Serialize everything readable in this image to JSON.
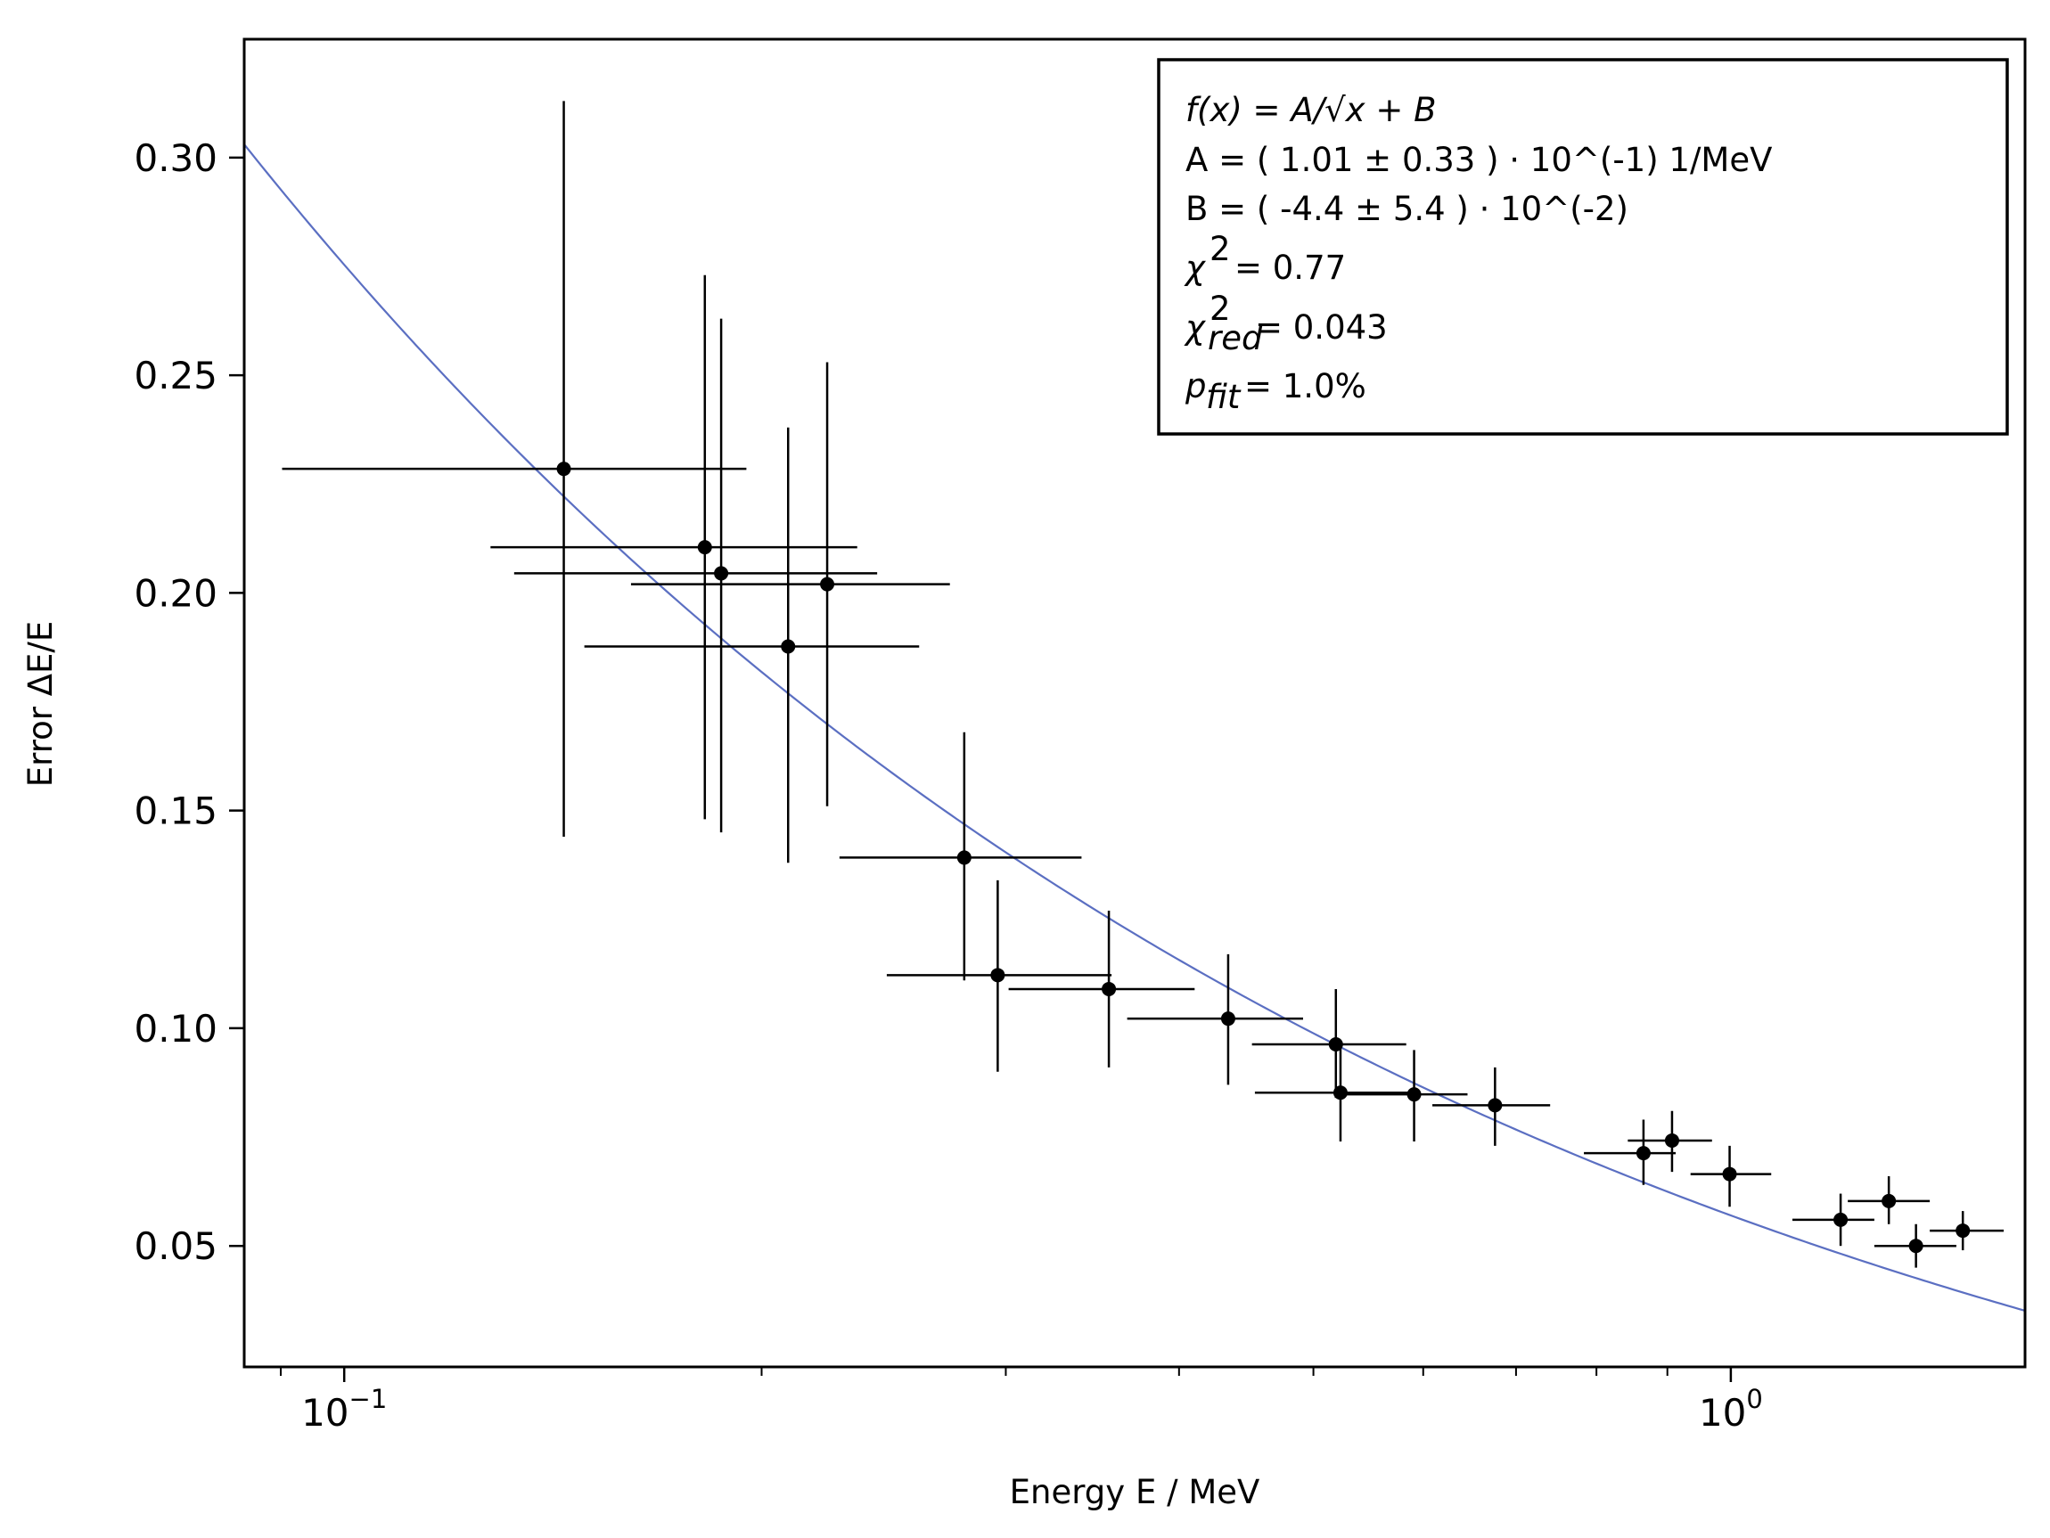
{
  "chart_data": {
    "type": "scatter",
    "xlabel": "Energy E / MeV",
    "ylabel": "Error ΔE/E",
    "xscale": "log",
    "xlim": [
      0.0847,
      1.63
    ],
    "ylim": [
      0.0222,
      0.3272
    ],
    "x_tick_labels": [
      {
        "value": 0.1,
        "base": "10",
        "exp": "−1"
      },
      {
        "value": 1.0,
        "base": "10",
        "exp": "0"
      }
    ],
    "y_ticks": [
      0.05,
      0.1,
      0.15,
      0.2,
      0.25,
      0.3
    ],
    "y_tick_labels": [
      "0.05",
      "0.10",
      "0.15",
      "0.20",
      "0.25",
      "0.30"
    ],
    "grid": false,
    "legend_position": "top-right",
    "series": [
      {
        "kind": "errorbar",
        "color": "#000000",
        "points": [
          {
            "x": 0.144,
            "y": 0.2285,
            "xlow": 0.0902,
            "xhigh": 0.195,
            "ylow": 0.144,
            "yhigh": 0.313
          },
          {
            "x": 0.182,
            "y": 0.2105,
            "xlow": 0.1275,
            "xhigh": 0.2344,
            "ylow": 0.148,
            "yhigh": 0.273
          },
          {
            "x": 0.187,
            "y": 0.2045,
            "xlow": 0.1326,
            "xhigh": 0.2423,
            "ylow": 0.145,
            "yhigh": 0.263
          },
          {
            "x": 0.209,
            "y": 0.1877,
            "xlow": 0.149,
            "xhigh": 0.2598,
            "ylow": 0.138,
            "yhigh": 0.238
          },
          {
            "x": 0.223,
            "y": 0.202,
            "xlow": 0.161,
            "xhigh": 0.2734,
            "ylow": 0.151,
            "yhigh": 0.253
          },
          {
            "x": 0.28,
            "y": 0.1392,
            "xlow": 0.2276,
            "xhigh": 0.3402,
            "ylow": 0.111,
            "yhigh": 0.168
          },
          {
            "x": 0.296,
            "y": 0.1122,
            "xlow": 0.2462,
            "xhigh": 0.3576,
            "ylow": 0.09,
            "yhigh": 0.134
          },
          {
            "x": 0.356,
            "y": 0.109,
            "xlow": 0.3014,
            "xhigh": 0.4105,
            "ylow": 0.091,
            "yhigh": 0.127
          },
          {
            "x": 0.434,
            "y": 0.1022,
            "xlow": 0.367,
            "xhigh": 0.4915,
            "ylow": 0.087,
            "yhigh": 0.117
          },
          {
            "x": 0.519,
            "y": 0.0963,
            "xlow": 0.4515,
            "xhigh": 0.5833,
            "ylow": 0.084,
            "yhigh": 0.109
          },
          {
            "x": 0.523,
            "y": 0.0852,
            "xlow": 0.4537,
            "xhigh": 0.5871,
            "ylow": 0.074,
            "yhigh": 0.097
          },
          {
            "x": 0.591,
            "y": 0.0848,
            "xlow": 0.524,
            "xhigh": 0.6458,
            "ylow": 0.074,
            "yhigh": 0.095
          },
          {
            "x": 0.676,
            "y": 0.0823,
            "xlow": 0.6092,
            "xhigh": 0.7408,
            "ylow": 0.073,
            "yhigh": 0.091
          },
          {
            "x": 0.865,
            "y": 0.0713,
            "xlow": 0.7835,
            "xhigh": 0.9125,
            "ylow": 0.064,
            "yhigh": 0.079
          },
          {
            "x": 0.907,
            "y": 0.0742,
            "xlow": 0.8428,
            "xhigh": 0.9692,
            "ylow": 0.067,
            "yhigh": 0.081
          },
          {
            "x": 0.998,
            "y": 0.0665,
            "xlow": 0.9353,
            "xhigh": 1.0694,
            "ylow": 0.059,
            "yhigh": 0.073
          },
          {
            "x": 1.2,
            "y": 0.056,
            "xlow": 1.1077,
            "xhigh": 1.2691,
            "ylow": 0.05,
            "yhigh": 0.062
          },
          {
            "x": 1.3,
            "y": 0.0603,
            "xlow": 1.2144,
            "xhigh": 1.3915,
            "ylow": 0.055,
            "yhigh": 0.066
          },
          {
            "x": 1.36,
            "y": 0.05,
            "xlow": 1.2691,
            "xhigh": 1.4542,
            "ylow": 0.045,
            "yhigh": 0.055
          },
          {
            "x": 1.47,
            "y": 0.0535,
            "xlow": 1.3915,
            "xhigh": 1.5733,
            "ylow": 0.049,
            "yhigh": 0.058
          }
        ]
      },
      {
        "kind": "fit",
        "color": "#5b6fc2",
        "function": "A/sqrt(x)+B",
        "A": 0.101,
        "B": -0.044
      }
    ],
    "legend": {
      "formula": "f(x) = A/√x + B",
      "line_A": "A = ( 1.01 ± 0.33 ) · 10^(-1) 1/MeV",
      "line_B": "B = ( -4.4 ± 5.4 ) · 10^(-2)",
      "chi2_value": "= 0.77",
      "chi2_red_value": "= 0.043",
      "chi2_red_sub": "red",
      "p_fit_sub": "fit",
      "p_fit_value": "= 1.0%"
    }
  }
}
